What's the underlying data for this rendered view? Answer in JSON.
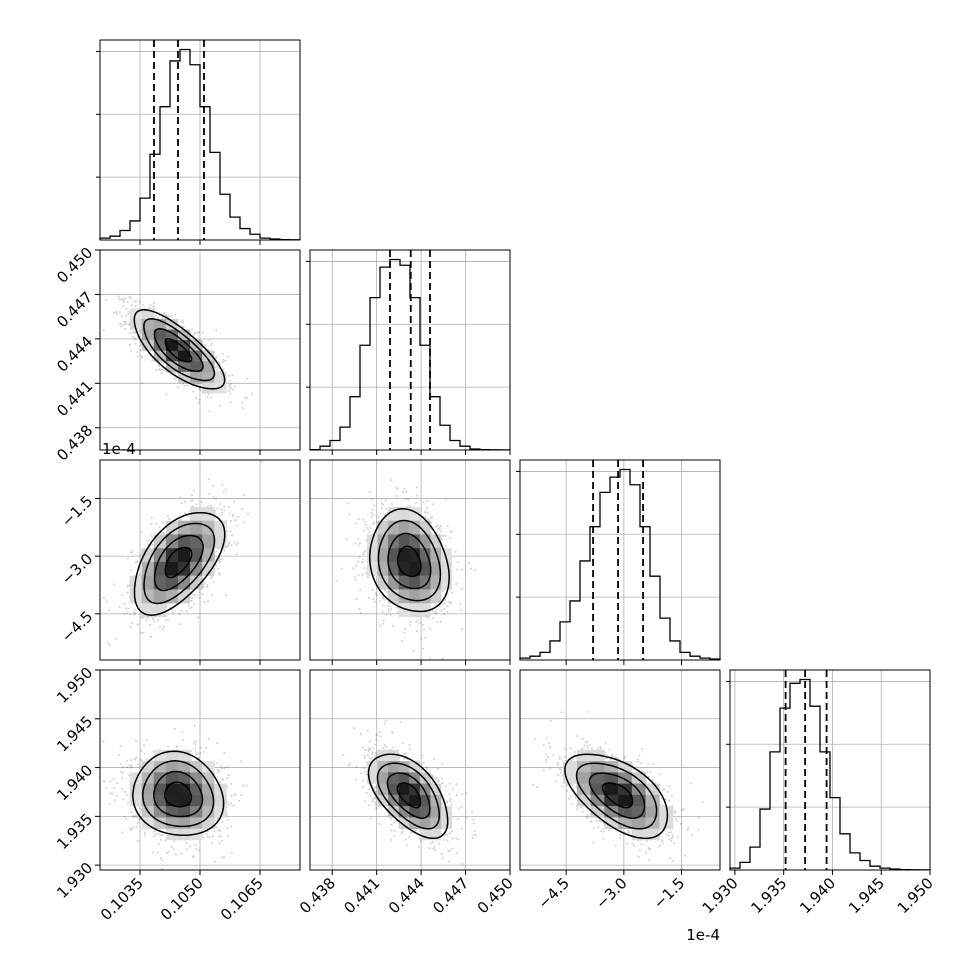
{
  "chart_data": {
    "type": "corner",
    "grid": true,
    "offset_label": "1e-4",
    "parameters": [
      {
        "range": [
          0.1025,
          0.1075
        ],
        "ticks": [
          0.1035,
          0.105,
          0.1065
        ],
        "tick_labels": [
          "0.1035",
          "0.1050",
          "0.1065"
        ],
        "mean": 0.10445,
        "std": 0.00055,
        "quantiles": [
          0.10385,
          0.10445,
          0.1051
        ],
        "hist": [
          1,
          2,
          5,
          10,
          22,
          45,
          70,
          94,
          100,
          92,
          70,
          46,
          24,
          12,
          6,
          3,
          1,
          0.5,
          0.2,
          0.1
        ]
      },
      {
        "range": [
          0.4365,
          0.45
        ],
        "ticks": [
          0.438,
          0.441,
          0.444,
          0.447,
          0.45
        ],
        "tick_labels": [
          "0.438",
          "0.441",
          "0.444",
          "0.447",
          "0.450"
        ],
        "mean": 0.4432,
        "std": 0.0013,
        "quantiles": [
          0.4419,
          0.4433,
          0.4446
        ],
        "hist": [
          0.2,
          2,
          5,
          12,
          28,
          55,
          80,
          96,
          100,
          97,
          80,
          55,
          28,
          13,
          5,
          2,
          0.5,
          0.2,
          0.1,
          0.05
        ]
      },
      {
        "range": [
          -5.7,
          -0.5
        ],
        "ticks": [
          -4.5,
          -3.0,
          -1.5
        ],
        "tick_labels": [
          "−4.5",
          "−3.0",
          "−1.5"
        ],
        "mean": -3.15,
        "std": 0.65,
        "quantiles": [
          -3.8,
          -3.15,
          -2.5
        ],
        "hist": [
          1,
          2,
          4,
          10,
          20,
          31,
          52,
          70,
          88,
          96,
          100,
          92,
          70,
          44,
          22,
          10,
          4,
          2,
          1,
          0.5
        ]
      },
      {
        "range": [
          1.9295,
          1.95
        ],
        "ticks": [
          1.93,
          1.935,
          1.94,
          1.945,
          1.95
        ],
        "tick_labels": [
          "1.930",
          "1.935",
          "1.940",
          "1.945",
          "1.950"
        ],
        "mean": 1.9372,
        "std": 0.0021,
        "quantiles": [
          1.9352,
          1.9372,
          1.9394
        ],
        "hist": [
          1,
          4,
          12,
          32,
          62,
          85,
          98,
          100,
          86,
          62,
          38,
          19,
          9,
          5,
          2,
          1,
          0.5,
          0.2,
          0.1,
          0.05
        ]
      }
    ],
    "correlations": [
      [
        1,
        -0.75,
        0.55,
        -0.1
      ],
      [
        -0.75,
        1,
        -0.2,
        -0.55
      ],
      [
        0.55,
        -0.2,
        1,
        -0.55
      ],
      [
        -0.1,
        -0.55,
        -0.55,
        1
      ]
    ]
  }
}
